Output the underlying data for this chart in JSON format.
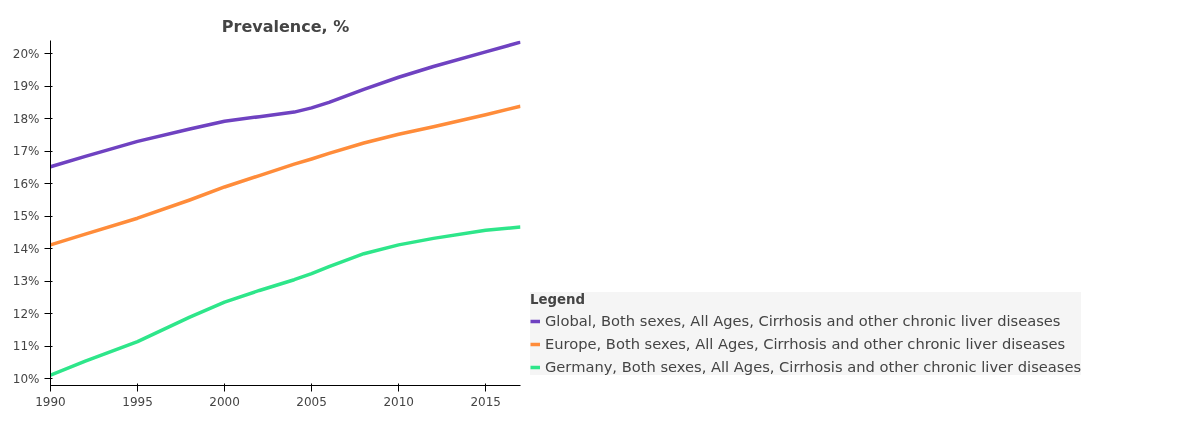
{
  "chart_data": {
    "type": "line",
    "title": "Prevalence, %",
    "legend_title": "Legend",
    "legend": "bottom right",
    "x": [
      1990,
      1992,
      1995,
      1998,
      2000,
      2002,
      2004,
      2005,
      2006,
      2008,
      2010,
      2012,
      2015,
      2017
    ],
    "series": [
      {
        "name": "Global, Both sexes, All Ages, Cirrhosis and other chronic liver diseases",
        "color": "#6f42c1",
        "values": [
          16.52,
          16.84,
          17.3,
          17.68,
          17.92,
          18.06,
          18.2,
          18.33,
          18.5,
          18.9,
          19.27,
          19.6,
          20.05,
          20.35
        ]
      },
      {
        "name": "Europe, Both sexes, All Ages, Cirrhosis and other chronic liver diseases",
        "color": "#ff8c3a",
        "values": [
          14.12,
          14.45,
          14.94,
          15.5,
          15.9,
          16.25,
          16.6,
          16.76,
          16.93,
          17.25,
          17.52,
          17.75,
          18.12,
          18.38
        ]
      },
      {
        "name": "Germany, Both sexes, All Ages, Cirrhosis and other chronic liver diseases",
        "color": "#2ee68a",
        "values": [
          10.12,
          10.55,
          11.15,
          11.9,
          12.36,
          12.72,
          13.05,
          13.24,
          13.45,
          13.85,
          14.12,
          14.32,
          14.57,
          14.67
        ]
      }
    ],
    "xlim": [
      1990,
      2017
    ],
    "xticks": [
      1990,
      1995,
      2000,
      2005,
      2010,
      2015
    ],
    "ylim": [
      9.8,
      20.4
    ],
    "yticks": [
      {
        "value": 10,
        "label": "10%"
      },
      {
        "value": 11,
        "label": "11%"
      },
      {
        "value": 12,
        "label": "12%"
      },
      {
        "value": 13,
        "label": "13%"
      },
      {
        "value": 14,
        "label": "14%"
      },
      {
        "value": 15,
        "label": "15%"
      },
      {
        "value": 16,
        "label": "16%"
      },
      {
        "value": 17,
        "label": "17%"
      },
      {
        "value": 18,
        "label": "18%"
      },
      {
        "value": 19,
        "label": "19%"
      },
      {
        "value": 20,
        "label": "20%"
      }
    ],
    "grid": false,
    "line_style": "solid"
  }
}
